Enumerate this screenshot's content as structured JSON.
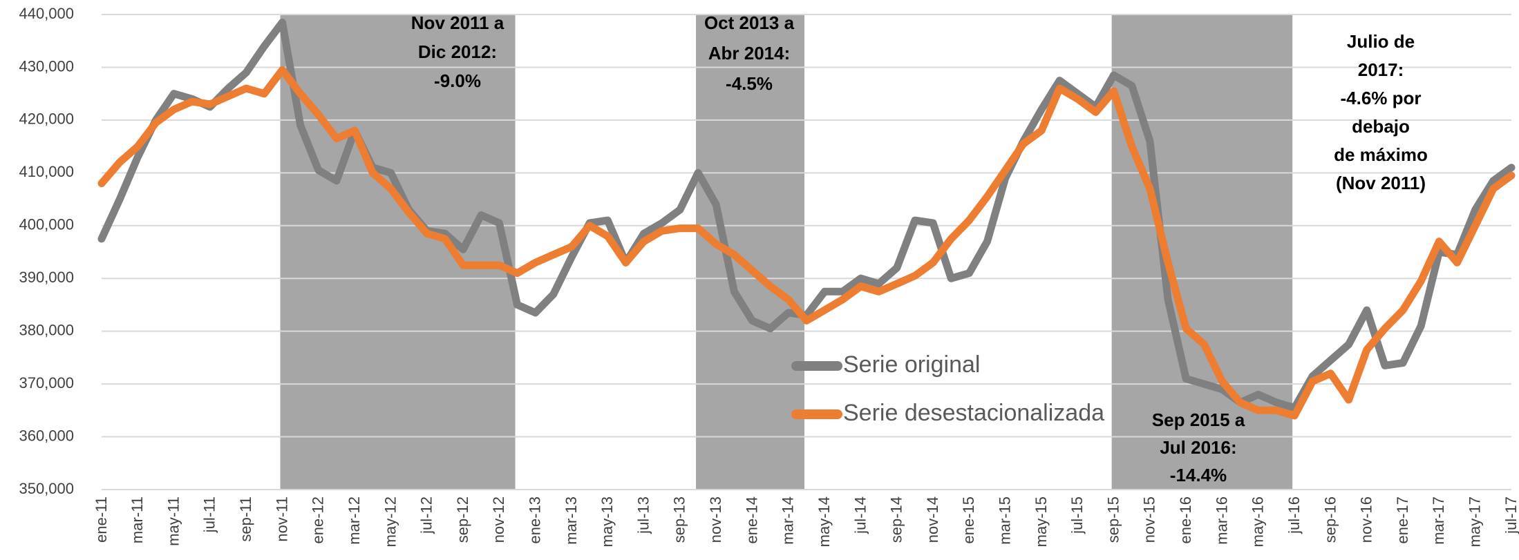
{
  "chart_data": {
    "type": "line",
    "categories": [
      "ene-11",
      null,
      "mar-11",
      null,
      "may-11",
      null,
      "jul-11",
      null,
      "sep-11",
      null,
      "nov-11",
      null,
      "ene-12",
      null,
      "mar-12",
      null,
      "may-12",
      null,
      "jul-12",
      null,
      "sep-12",
      null,
      "nov-12",
      null,
      "ene-13",
      null,
      "mar-13",
      null,
      "may-13",
      null,
      "jul-13",
      null,
      "sep-13",
      null,
      "nov-13",
      null,
      "ene-14",
      null,
      "mar-14",
      null,
      "may-14",
      null,
      "jul-14",
      null,
      "sep-14",
      null,
      "nov-14",
      null,
      "ene-15",
      null,
      "mar-15",
      null,
      "may-15",
      null,
      "jul-15",
      null,
      "sep-15",
      null,
      "nov-15",
      null,
      "ene-16",
      null,
      "mar-16",
      null,
      "may-16",
      null,
      "jul-16",
      null,
      "sep-16",
      null,
      "nov-16",
      null,
      "ene-17",
      null,
      "mar-17",
      null,
      "may-17",
      null,
      "jul-17"
    ],
    "series": [
      {
        "name": "Serie original",
        "color": "#808080",
        "values": [
          397500,
          405000,
          413000,
          420000,
          425000,
          424000,
          422500,
          426000,
          429000,
          434000,
          438500,
          419000,
          410500,
          408500,
          418000,
          411000,
          410000,
          403000,
          399000,
          398500,
          395500,
          402000,
          400500,
          385000,
          383500,
          387000,
          394000,
          400500,
          401000,
          393000,
          398500,
          400500,
          403000,
          410000,
          404000,
          387500,
          382000,
          380500,
          383500,
          383000,
          387500,
          387500,
          390000,
          389000,
          392000,
          401000,
          400500,
          390000,
          391000,
          397000,
          409000,
          416000,
          422000,
          427500,
          425000,
          422500,
          428500,
          426500,
          416000,
          386000,
          371000,
          370000,
          369000,
          366500,
          368000,
          366500,
          365500,
          371500,
          374500,
          377500,
          384000,
          373500,
          374000,
          381000,
          395000,
          394500,
          403000,
          408500,
          411000
        ]
      },
      {
        "name": "Serie desestacionalizada",
        "color": "#ed7d31",
        "values": [
          408000,
          412000,
          415000,
          419500,
          422000,
          423500,
          423000,
          424500,
          426000,
          425000,
          429500,
          425000,
          421000,
          416500,
          418000,
          410000,
          407000,
          402500,
          398500,
          397500,
          392500,
          392500,
          392500,
          391000,
          393000,
          394500,
          396000,
          400000,
          398000,
          393000,
          397000,
          399000,
          399500,
          399500,
          396500,
          394500,
          391500,
          388500,
          386000,
          382000,
          384000,
          386000,
          388500,
          387500,
          389000,
          390500,
          393000,
          397500,
          401000,
          405500,
          410500,
          415500,
          418000,
          426000,
          424000,
          421500,
          425500,
          415000,
          407000,
          393000,
          380500,
          377500,
          370500,
          366500,
          365000,
          365000,
          364000,
          370500,
          372000,
          367000,
          376500,
          380500,
          384000,
          389500,
          397000,
          393000,
          400000,
          407000,
          409500
        ]
      }
    ],
    "ylim": [
      350000,
      440000
    ],
    "yticks": [
      {
        "value": 350000,
        "label": "350,000"
      },
      {
        "value": 360000,
        "label": "360,000"
      },
      {
        "value": 370000,
        "label": "370,000"
      },
      {
        "value": 380000,
        "label": "380,000"
      },
      {
        "value": 390000,
        "label": "390,000"
      },
      {
        "value": 400000,
        "label": "400,000"
      },
      {
        "value": 410000,
        "label": "410,000"
      },
      {
        "value": 420000,
        "label": "420,000"
      },
      {
        "value": 430000,
        "label": "430,000"
      },
      {
        "value": 440000,
        "label": "440,000"
      }
    ],
    "grid": true,
    "shaded_periods": [
      {
        "from": 10,
        "to": 23,
        "label": [
          "Nov 2011  a",
          "Dic 2012:",
          "-9.0%"
        ]
      },
      {
        "from": 33,
        "to": 39,
        "label": [
          "Oct 2013  a",
          "Abr 2014:",
          "-4.5%"
        ]
      },
      {
        "from": 56,
        "to": 66,
        "label": [
          "Sep 2015  a",
          "Jul 2016:",
          "-14.4%"
        ]
      }
    ],
    "annotation": [
      "Julio de",
      "2017:",
      "-4.6% por",
      "debajo",
      "de máximo",
      "(Nov 2011)"
    ]
  }
}
